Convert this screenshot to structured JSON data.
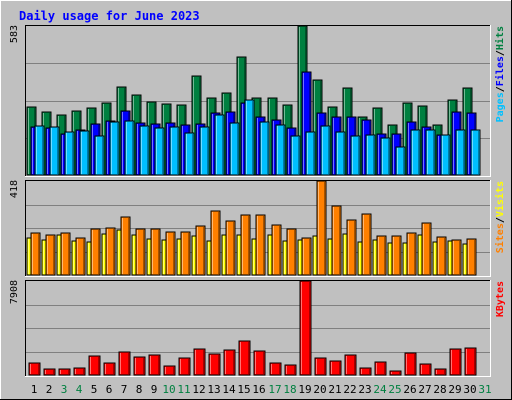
{
  "title": "Daily usage for June 2023",
  "colors": {
    "frame_bg": "#c0c0c0",
    "plot_bg": "#c0c0c0",
    "title": "#0000ff",
    "hits": "#008040",
    "files": "#0000ff",
    "pages": "#00c0ff",
    "visits": "#ffff00",
    "sites": "#ff8000",
    "kbytes": "#ff0000",
    "weekend": "#008040",
    "weekday": "#000000",
    "gridline": "#808080"
  },
  "chart_data": [
    {
      "type": "bar",
      "panel": "hits-files-pages",
      "ymax_label": "583",
      "ymax": 583,
      "legend": [
        {
          "name": "Hits",
          "color": "#008040"
        },
        {
          "name": "Files",
          "color": "#0000ff"
        },
        {
          "name": "Pages",
          "color": "#00c0ff"
        }
      ],
      "legend_separator": "/",
      "series": [
        {
          "name": "Hits",
          "values": [
            266,
            246,
            236,
            250,
            262,
            280,
            344,
            314,
            284,
            276,
            274,
            386,
            302,
            320,
            460,
            300,
            300,
            272,
            583,
            372,
            266,
            340,
            226,
            262,
            196,
            282,
            270,
            196,
            294,
            340,
            0
          ]
        },
        {
          "name": "Files",
          "values": [
            186,
            184,
            160,
            176,
            200,
            210,
            252,
            202,
            198,
            202,
            196,
            198,
            242,
            246,
            282,
            226,
            214,
            182,
            402,
            244,
            226,
            226,
            216,
            160,
            160,
            208,
            186,
            158,
            246,
            244,
            0
          ]
        },
        {
          "name": "Pages",
          "values": [
            192,
            188,
            168,
            174,
            154,
            208,
            210,
            192,
            184,
            186,
            166,
            188,
            236,
            202,
            292,
            206,
            194,
            154,
            168,
            192,
            170,
            152,
            156,
            146,
            110,
            176,
            178,
            156,
            178,
            176,
            0
          ]
        }
      ]
    },
    {
      "type": "bar",
      "panel": "visits-sites",
      "ymax_label": "418",
      "ymax": 418,
      "legend": [
        {
          "name": "Visits",
          "color": "#ffff00"
        },
        {
          "name": "Sites",
          "color": "#ff8000"
        }
      ],
      "legend_separator": "/",
      "series": [
        {
          "name": "Visits",
          "values": [
            164,
            156,
            176,
            150,
            146,
            184,
            198,
            176,
            162,
            156,
            160,
            172,
            152,
            180,
            176,
            160,
            176,
            152,
            154,
            172,
            158,
            182,
            146,
            156,
            144,
            144,
            178,
            148,
            150,
            140,
            0
          ]
        },
        {
          "name": "Sites",
          "values": [
            186,
            176,
            186,
            166,
            204,
            208,
            260,
            206,
            204,
            192,
            190,
            216,
            286,
            242,
            266,
            268,
            224,
            204,
            164,
            418,
            308,
            244,
            272,
            172,
            174,
            186,
            232,
            168,
            154,
            158,
            0
          ]
        }
      ]
    },
    {
      "type": "bar",
      "panel": "kbytes",
      "ymax_label": "7908",
      "ymax": 7908,
      "legend": [
        {
          "name": "KBytes",
          "color": "#ff0000"
        }
      ],
      "series": [
        {
          "name": "KBytes",
          "values": [
            1050,
            520,
            520,
            630,
            1570,
            1050,
            1940,
            1550,
            1700,
            740,
            1420,
            2150,
            1770,
            2090,
            2850,
            2050,
            1050,
            830,
            7908,
            1470,
            1160,
            1700,
            590,
            1070,
            350,
            1830,
            960,
            530,
            2190,
            2300,
            0
          ]
        }
      ]
    }
  ],
  "x_axis": {
    "labels": [
      "1",
      "2",
      "3",
      "4",
      "5",
      "6",
      "7",
      "8",
      "9",
      "10",
      "11",
      "12",
      "13",
      "14",
      "15",
      "16",
      "17",
      "18",
      "19",
      "20",
      "21",
      "22",
      "23",
      "24",
      "25",
      "26",
      "27",
      "28",
      "29",
      "30",
      "31"
    ],
    "weekend": [
      false,
      false,
      true,
      true,
      false,
      false,
      false,
      false,
      false,
      true,
      true,
      false,
      false,
      false,
      false,
      false,
      true,
      true,
      false,
      false,
      false,
      false,
      false,
      true,
      true,
      false,
      false,
      false,
      false,
      false,
      true
    ]
  }
}
